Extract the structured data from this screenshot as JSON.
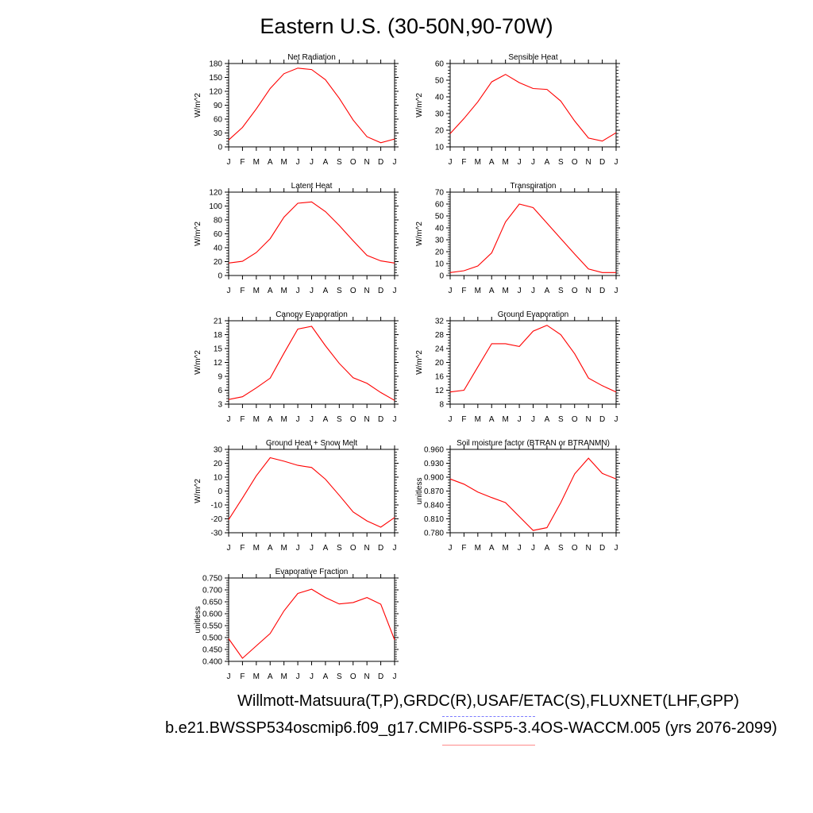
{
  "figure": {
    "title": "Eastern U.S. (30-50N,90-70W)",
    "footer_obs": "Willmott-Matsuura(T,P),GRDC(R),USAF/ETAC(S),FLUXNET(LHF,GPP)",
    "footer_case": "b.e21.BWSSP534oscmip6.f09_g17.CMIP6-SSP5-3.4OS-WACCM.005 (yrs 2076-2099)",
    "colors": {
      "series_line": "#ff0000",
      "obs_legend": "#7b7bff",
      "case_legend": "#ff8a8a",
      "axis": "#000000"
    }
  },
  "chart_data": [
    {
      "type": "line",
      "title": "Net Radiation",
      "ylabel": "W/m^2",
      "categories": [
        "J",
        "F",
        "M",
        "A",
        "M",
        "J",
        "J",
        "A",
        "S",
        "O",
        "N",
        "D",
        "J"
      ],
      "ylim": [
        0,
        180
      ],
      "yticks": [
        "0",
        "30",
        "60",
        "90",
        "120",
        "150",
        "180"
      ],
      "grid": false,
      "series": [
        {
          "values": [
            15,
            42,
            82,
            126,
            158,
            170,
            167,
            145,
            105,
            58,
            22,
            9,
            17
          ]
        }
      ]
    },
    {
      "type": "line",
      "title": "Sensible Heat",
      "ylabel": "W/m^2",
      "categories": [
        "J",
        "F",
        "M",
        "A",
        "M",
        "J",
        "J",
        "A",
        "S",
        "O",
        "N",
        "D",
        "J"
      ],
      "ylim": [
        10,
        60
      ],
      "yticks": [
        "10",
        "20",
        "30",
        "40",
        "50",
        "60"
      ],
      "grid": false,
      "series": [
        {
          "values": [
            18,
            27,
            37,
            49,
            53.5,
            48.5,
            45,
            44.5,
            37.5,
            25.5,
            15.3,
            13.5,
            18.5
          ]
        }
      ]
    },
    {
      "type": "line",
      "title": "Latent Heat",
      "ylabel": "W/m^2",
      "categories": [
        "J",
        "F",
        "M",
        "A",
        "M",
        "J",
        "J",
        "A",
        "S",
        "O",
        "N",
        "D",
        "J"
      ],
      "ylim": [
        0,
        120
      ],
      "yticks": [
        "0",
        "20",
        "40",
        "60",
        "80",
        "100",
        "120"
      ],
      "grid": false,
      "series": [
        {
          "values": [
            18,
            20.5,
            33,
            53,
            84,
            104,
            106,
            92,
            72,
            50,
            29,
            21,
            18
          ]
        }
      ]
    },
    {
      "type": "line",
      "title": "Transpiration",
      "ylabel": "W/m^2",
      "categories": [
        "J",
        "F",
        "M",
        "A",
        "M",
        "J",
        "J",
        "A",
        "S",
        "O",
        "N",
        "D",
        "J"
      ],
      "ylim": [
        0,
        70
      ],
      "yticks": [
        "0",
        "10",
        "20",
        "30",
        "40",
        "50",
        "60",
        "70"
      ],
      "grid": false,
      "series": [
        {
          "values": [
            2.5,
            4,
            8,
            19,
            45,
            60,
            57,
            44,
            31,
            18,
            5.5,
            2.5,
            2.5
          ]
        }
      ]
    },
    {
      "type": "line",
      "title": "Canopy Evaporation",
      "ylabel": "W/m^2",
      "categories": [
        "J",
        "F",
        "M",
        "A",
        "M",
        "J",
        "J",
        "A",
        "S",
        "O",
        "N",
        "D",
        "J"
      ],
      "ylim": [
        3,
        21
      ],
      "yticks": [
        "3",
        "6",
        "9",
        "12",
        "15",
        "18",
        "21"
      ],
      "grid": false,
      "series": [
        {
          "values": [
            4,
            4.6,
            6.5,
            8.6,
            14,
            19.2,
            19.8,
            15.6,
            11.8,
            8.7,
            7.5,
            5.5,
            3.8
          ]
        }
      ]
    },
    {
      "type": "line",
      "title": "Ground Evaporation",
      "ylabel": "W/m^2",
      "categories": [
        "J",
        "F",
        "M",
        "A",
        "M",
        "J",
        "J",
        "A",
        "S",
        "O",
        "N",
        "D",
        "J"
      ],
      "ylim": [
        8,
        32
      ],
      "yticks": [
        "8",
        "12",
        "16",
        "20",
        "24",
        "28",
        "32"
      ],
      "grid": false,
      "series": [
        {
          "values": [
            11.5,
            12,
            18.7,
            25.4,
            25.4,
            24.6,
            29,
            30.7,
            28,
            22.5,
            15.5,
            13.3,
            11.5
          ]
        }
      ]
    },
    {
      "type": "line",
      "title": "Ground Heat + Snow Melt",
      "ylabel": "W/m^2",
      "categories": [
        "J",
        "F",
        "M",
        "A",
        "M",
        "J",
        "J",
        "A",
        "S",
        "O",
        "N",
        "D",
        "J"
      ],
      "ylim": [
        -30,
        30
      ],
      "yticks": [
        "-30",
        "-20",
        "-10",
        "0",
        "10",
        "20",
        "30"
      ],
      "grid": false,
      "series": [
        {
          "values": [
            -20.5,
            -5,
            11,
            24,
            21.5,
            18.5,
            17,
            8.5,
            -3,
            -15,
            -21.5,
            -26,
            -19
          ]
        }
      ]
    },
    {
      "type": "line",
      "title": "Soil moisture factor (BTRAN or BTRANMN)",
      "ylabel": "unitless",
      "categories": [
        "J",
        "F",
        "M",
        "A",
        "M",
        "J",
        "J",
        "A",
        "S",
        "O",
        "N",
        "D",
        "J"
      ],
      "ylim": [
        0.78,
        0.96
      ],
      "yticks": [
        "0.780",
        "0.810",
        "0.840",
        "0.870",
        "0.900",
        "0.930",
        "0.960"
      ],
      "grid": false,
      "series": [
        {
          "values": [
            0.896,
            0.885,
            0.868,
            0.856,
            0.845,
            0.815,
            0.785,
            0.791,
            0.845,
            0.907,
            0.941,
            0.908,
            0.896
          ]
        }
      ]
    },
    {
      "type": "line",
      "title": "Evaporative Fraction",
      "ylabel": "unitless",
      "categories": [
        "J",
        "F",
        "M",
        "A",
        "M",
        "J",
        "J",
        "A",
        "S",
        "O",
        "N",
        "D",
        "J"
      ],
      "ylim": [
        0.4,
        0.75
      ],
      "yticks": [
        "0.400",
        "0.450",
        "0.500",
        "0.550",
        "0.600",
        "0.650",
        "0.700",
        "0.750"
      ],
      "grid": false,
      "series": [
        {
          "values": [
            0.495,
            0.413,
            0.465,
            0.517,
            0.612,
            0.685,
            0.703,
            0.668,
            0.641,
            0.647,
            0.668,
            0.64,
            0.49
          ]
        }
      ]
    }
  ]
}
